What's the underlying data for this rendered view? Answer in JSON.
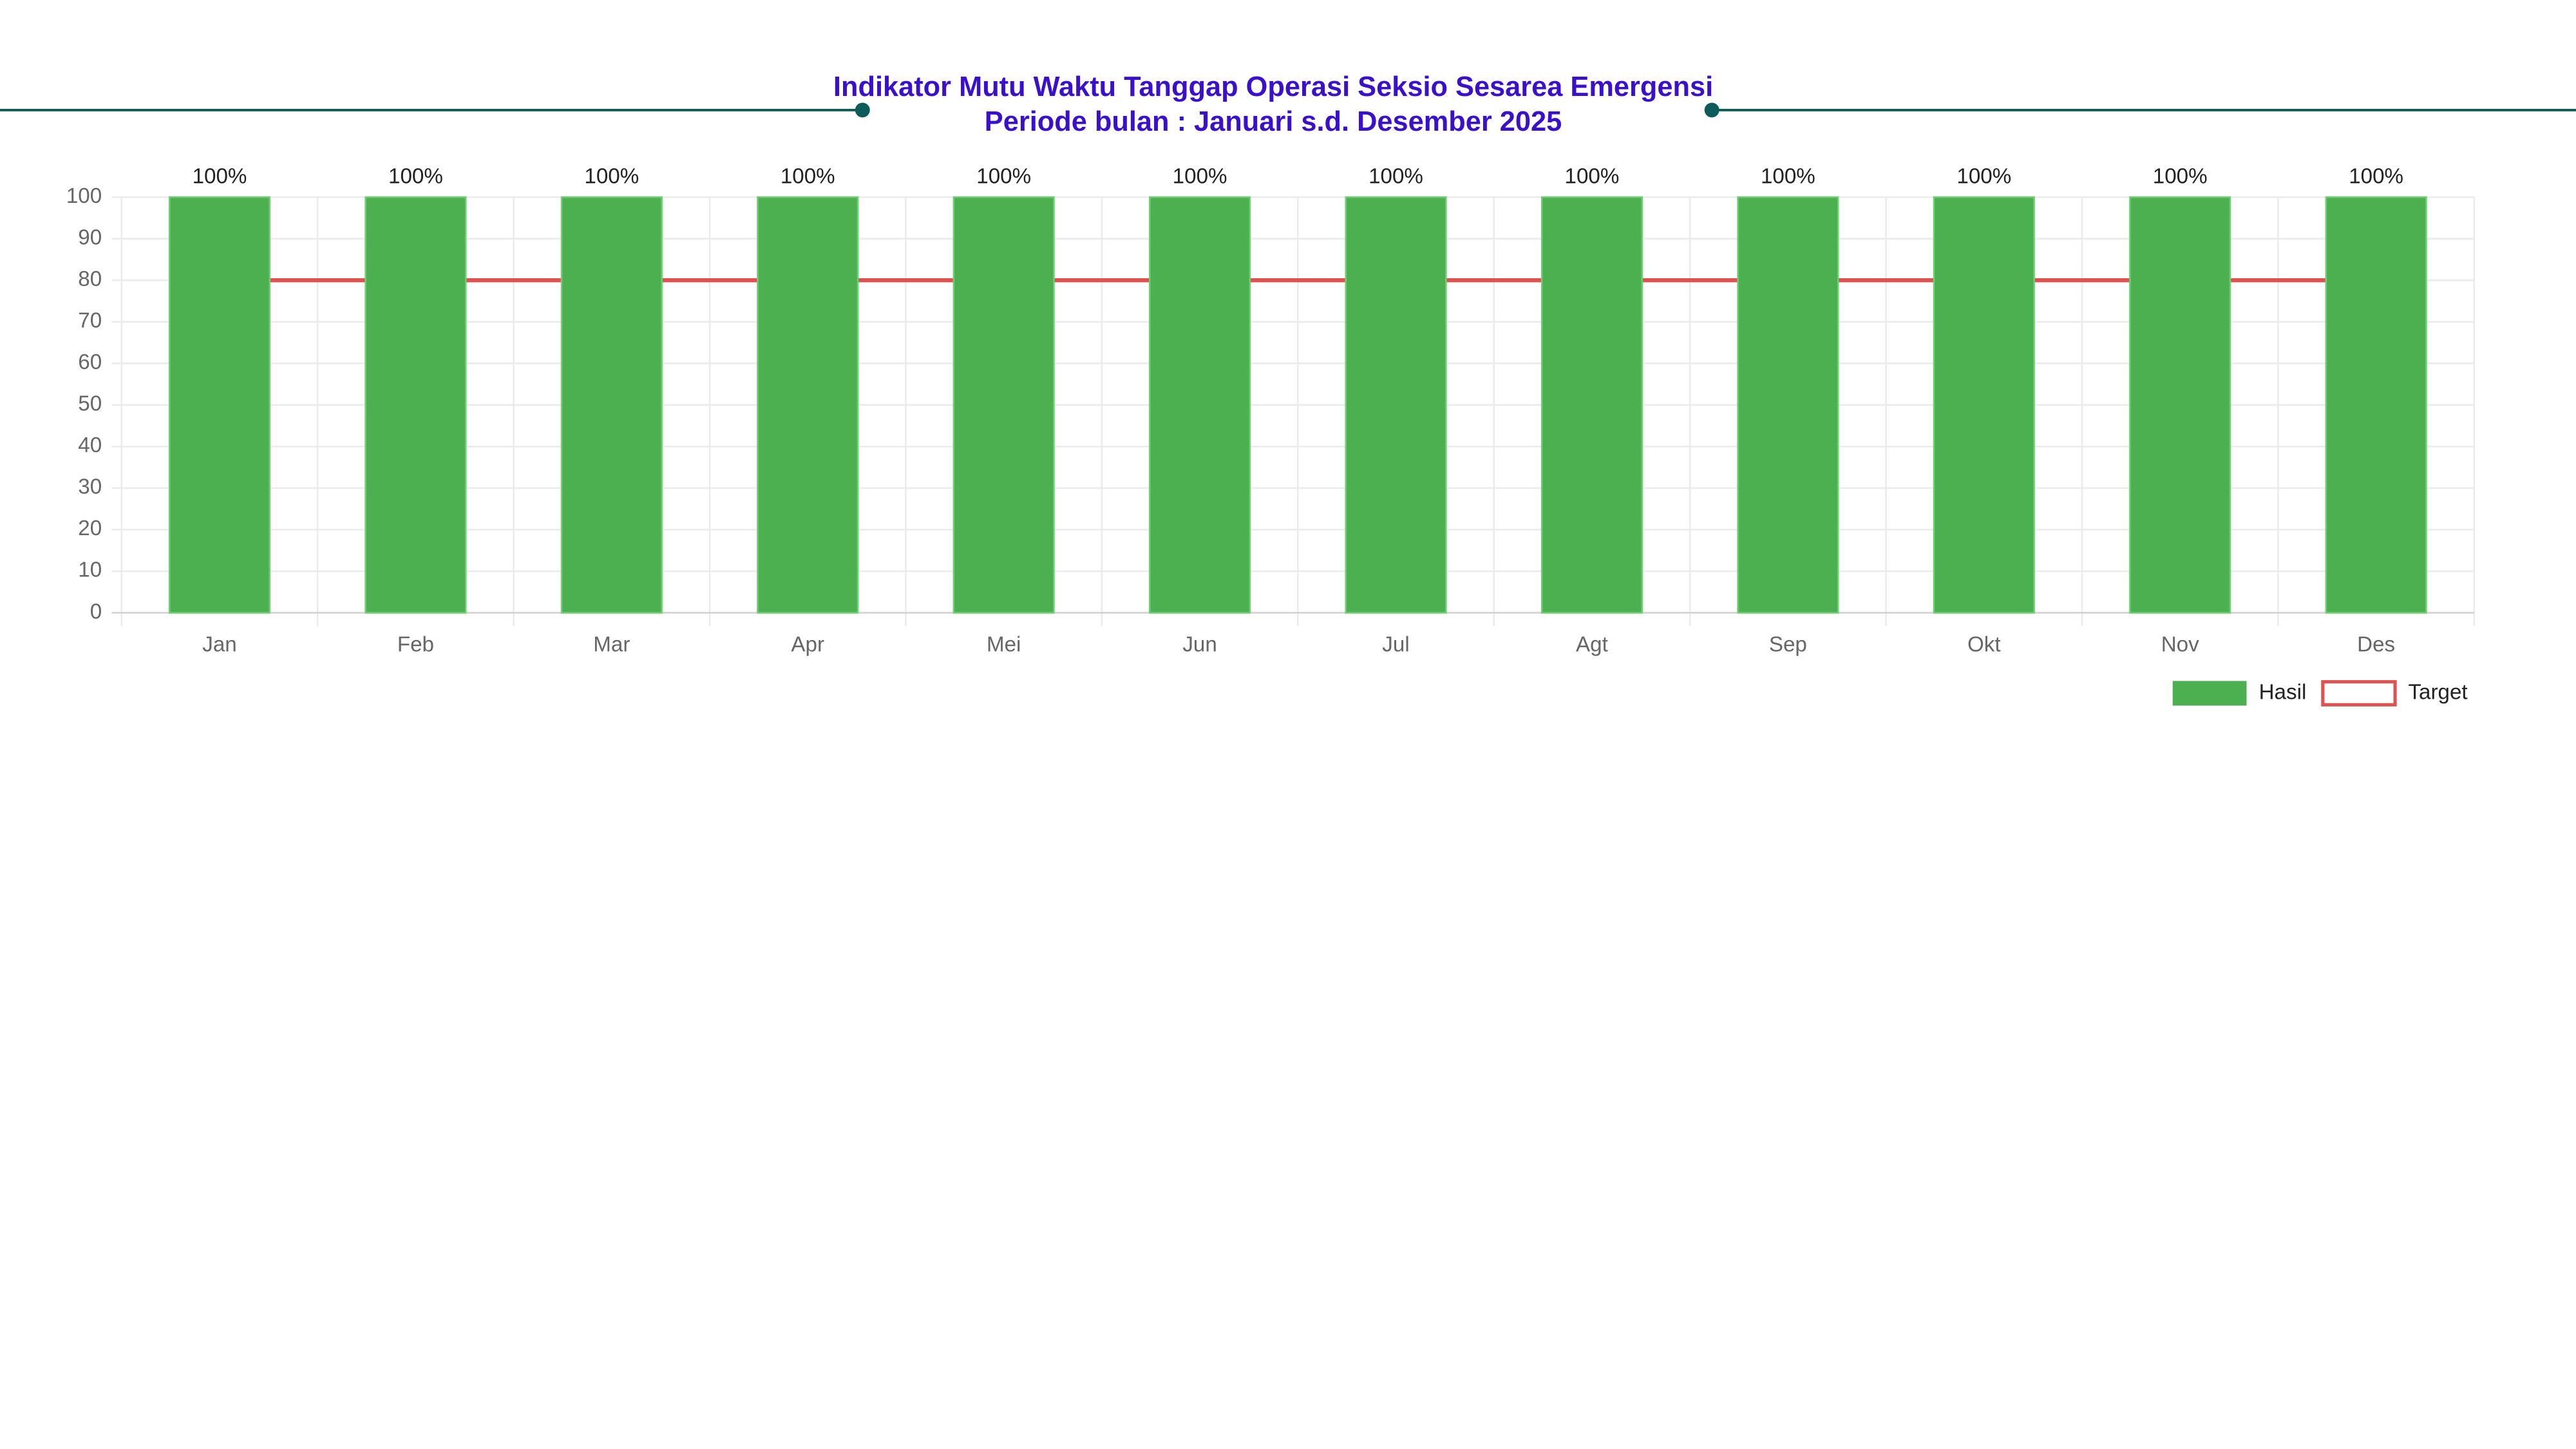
{
  "chart_data": {
    "type": "bar",
    "title": "Indikator Mutu Waktu Tanggap Operasi Seksio Sesarea Emergensi",
    "subtitle": "Periode bulan : Januari s.d. Desember 2025",
    "categories": [
      "Jan",
      "Feb",
      "Mar",
      "Apr",
      "Mei",
      "Jun",
      "Jul",
      "Agt",
      "Sep",
      "Okt",
      "Nov",
      "Des"
    ],
    "series": [
      {
        "name": "Hasil",
        "type": "bar",
        "color": "#4caf50",
        "values": [
          100,
          100,
          100,
          100,
          100,
          100,
          100,
          100,
          100,
          100,
          100,
          100
        ],
        "value_labels": [
          "100%",
          "100%",
          "100%",
          "100%",
          "100%",
          "100%",
          "100%",
          "100%",
          "100%",
          "100%",
          "100%",
          "100%"
        ]
      },
      {
        "name": "Target",
        "type": "line",
        "color": "#e0524f",
        "values": [
          80,
          80,
          80,
          80,
          80,
          80,
          80,
          80,
          80,
          80,
          80,
          80
        ]
      }
    ],
    "ylim": [
      0,
      100
    ],
    "yticks": [
      0,
      10,
      20,
      30,
      40,
      50,
      60,
      70,
      80,
      90,
      100
    ],
    "grid": true,
    "legend": "bottom-right"
  }
}
